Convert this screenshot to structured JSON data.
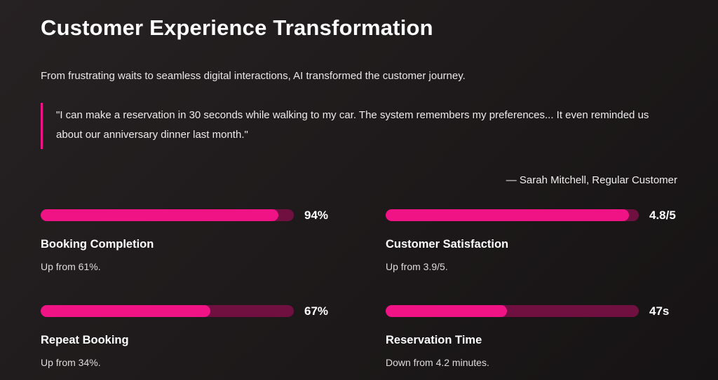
{
  "slide": {
    "title": "Customer Experience Transformation",
    "subtitle": "From frustrating waits to seamless digital interactions, AI transformed the customer journey.",
    "quote": "\"I can make a reservation in 30 seconds while walking to my car. The system remembers my preferences... It even reminded us about our anniversary dinner last month.\"",
    "attribution": "— Sarah Mitchell, Regular Customer"
  },
  "colors": {
    "accent": "#f01385",
    "track": "#701040",
    "bg1": "#262122",
    "bg2": "#161314"
  },
  "chart_data": {
    "type": "bar",
    "title": "Customer Experience Transformation",
    "legend": false,
    "metrics": [
      {
        "label": "Booking Completion",
        "value": "94%",
        "percent": 94,
        "note": "Up from 61%."
      },
      {
        "label": "Customer Satisfaction",
        "value": "4.8/5",
        "percent": 96,
        "note": "Up from 3.9/5."
      },
      {
        "label": "Repeat Booking",
        "value": "67%",
        "percent": 67,
        "note": "Up from 34%."
      },
      {
        "label": "Reservation Time",
        "value": "47s",
        "percent": 48,
        "note": "Down from 4.2 minutes."
      }
    ]
  }
}
